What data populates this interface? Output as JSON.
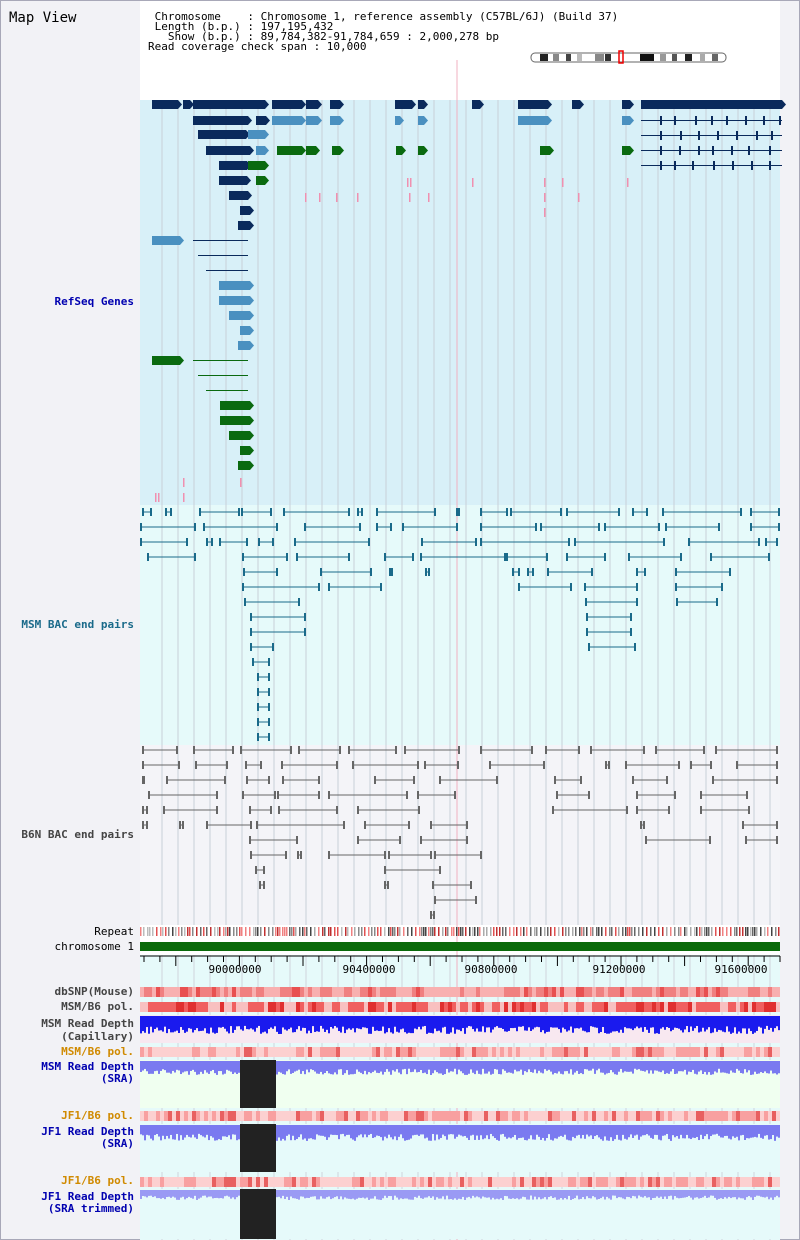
{
  "title": "Map View",
  "header": {
    "line1": " Chromosome    : Chromosome 1, reference assembly (C57BL/6J) (Build 37)",
    "line2": " Length (b.p.) : 197,195,432",
    "line3": "   Show (b.p.) : 89,784,382-91,784,659 : 2,000,278 bp",
    "line4": "Read coverage check span : 10,000"
  },
  "tracks": {
    "refseq": "RefSeq Genes",
    "msm_bac": "MSM BAC end pairs",
    "b6n_bac": "B6N BAC end pairs",
    "repeat": "Repeat",
    "chromosome": "chromosome 1",
    "dbsnp": "dbSNP(Mouse)",
    "msm_b6_pol": "MSM/B6 pol.",
    "msm_depth_cap_1": "MSM Read Depth",
    "msm_depth_cap_2": "(Capillary)",
    "msm_b6_pol_2": "MSM/B6 pol.",
    "msm_depth_sra_1": "MSM Read Depth",
    "msm_depth_sra_2": "(SRA)",
    "jf1_b6_pol": "JF1/B6 pol.",
    "jf1_depth_sra_1": "JF1 Read Depth",
    "jf1_depth_sra_2": "(SRA)",
    "jf1_b6_pol_2": "JF1/B6 pol.",
    "jf1_depth_trim_1": "JF1 Read Depth",
    "jf1_depth_trim_2": "(SRA trimmed)"
  },
  "axis": {
    "ticks": [
      "90000000",
      "90400000",
      "90800000",
      "91200000",
      "91600000"
    ]
  },
  "colors": {
    "refseq_bg": "#d8f0f8",
    "msm_bg": "#e6fafa",
    "b6n_bg": "#f4f4f8",
    "gene_navy": "#0a2a5c",
    "gene_blue": "#4a90c0",
    "gene_green": "#0a6a10",
    "msm_line": "#1a6a8a",
    "b6n_line": "#666666",
    "chromosome_bar": "#0a6a0a",
    "depth_blue": "#1a1aee",
    "depth_lightblue": "#7a7af0",
    "label_blue": "#0000b0",
    "label_teal": "#1a6a8a",
    "label_orange": "#d08a00",
    "label_gray": "#444444"
  }
}
